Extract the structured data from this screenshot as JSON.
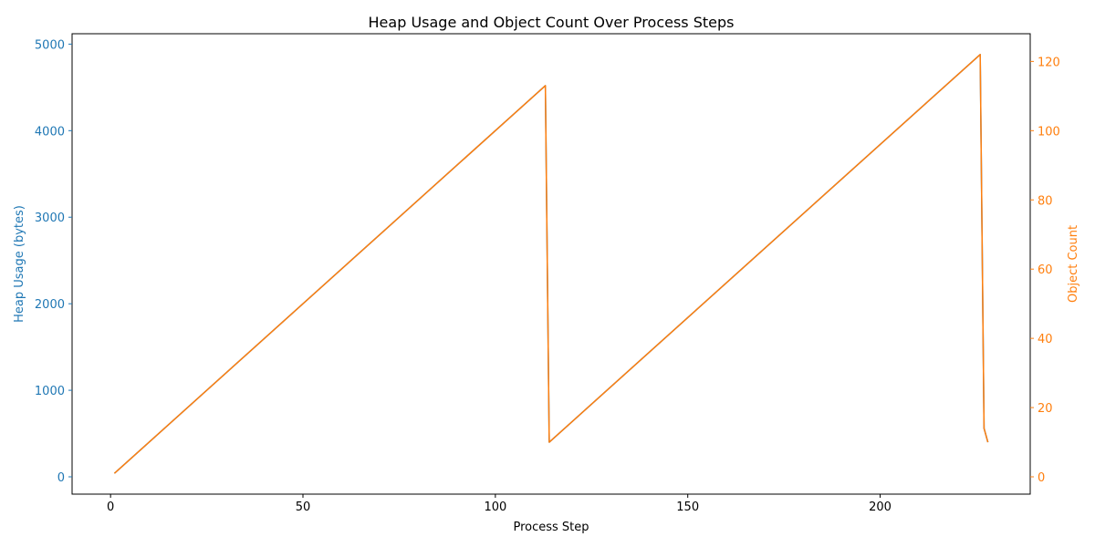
{
  "chart_data": {
    "type": "line",
    "title": "Heap Usage and Object Count Over Process Steps",
    "xlabel": "Process Step",
    "ylabel_left": "Heap Usage (bytes)",
    "ylabel_right": "Object Count",
    "xlim": [
      -10,
      239
    ],
    "ylim_left": [
      -200,
      5120
    ],
    "ylim_right": [
      -5,
      128
    ],
    "x_ticks": [
      0,
      50,
      100,
      150,
      200
    ],
    "y_left_ticks": [
      0,
      1000,
      2000,
      3000,
      4000,
      5000
    ],
    "y_right_ticks": [
      0,
      20,
      40,
      60,
      80,
      100,
      120
    ],
    "grid": false,
    "series": [
      {
        "axis": "left",
        "color": "#1f77b4",
        "x": [
          1,
          113,
          114,
          226,
          227,
          228
        ],
        "values": [
          40,
          4520,
          400,
          4880,
          560,
          400
        ]
      },
      {
        "axis": "right",
        "color": "#ff7f0e",
        "x": [
          1,
          113,
          114,
          226,
          227,
          228
        ],
        "values": [
          1,
          113,
          10,
          122,
          14,
          10
        ]
      }
    ]
  }
}
